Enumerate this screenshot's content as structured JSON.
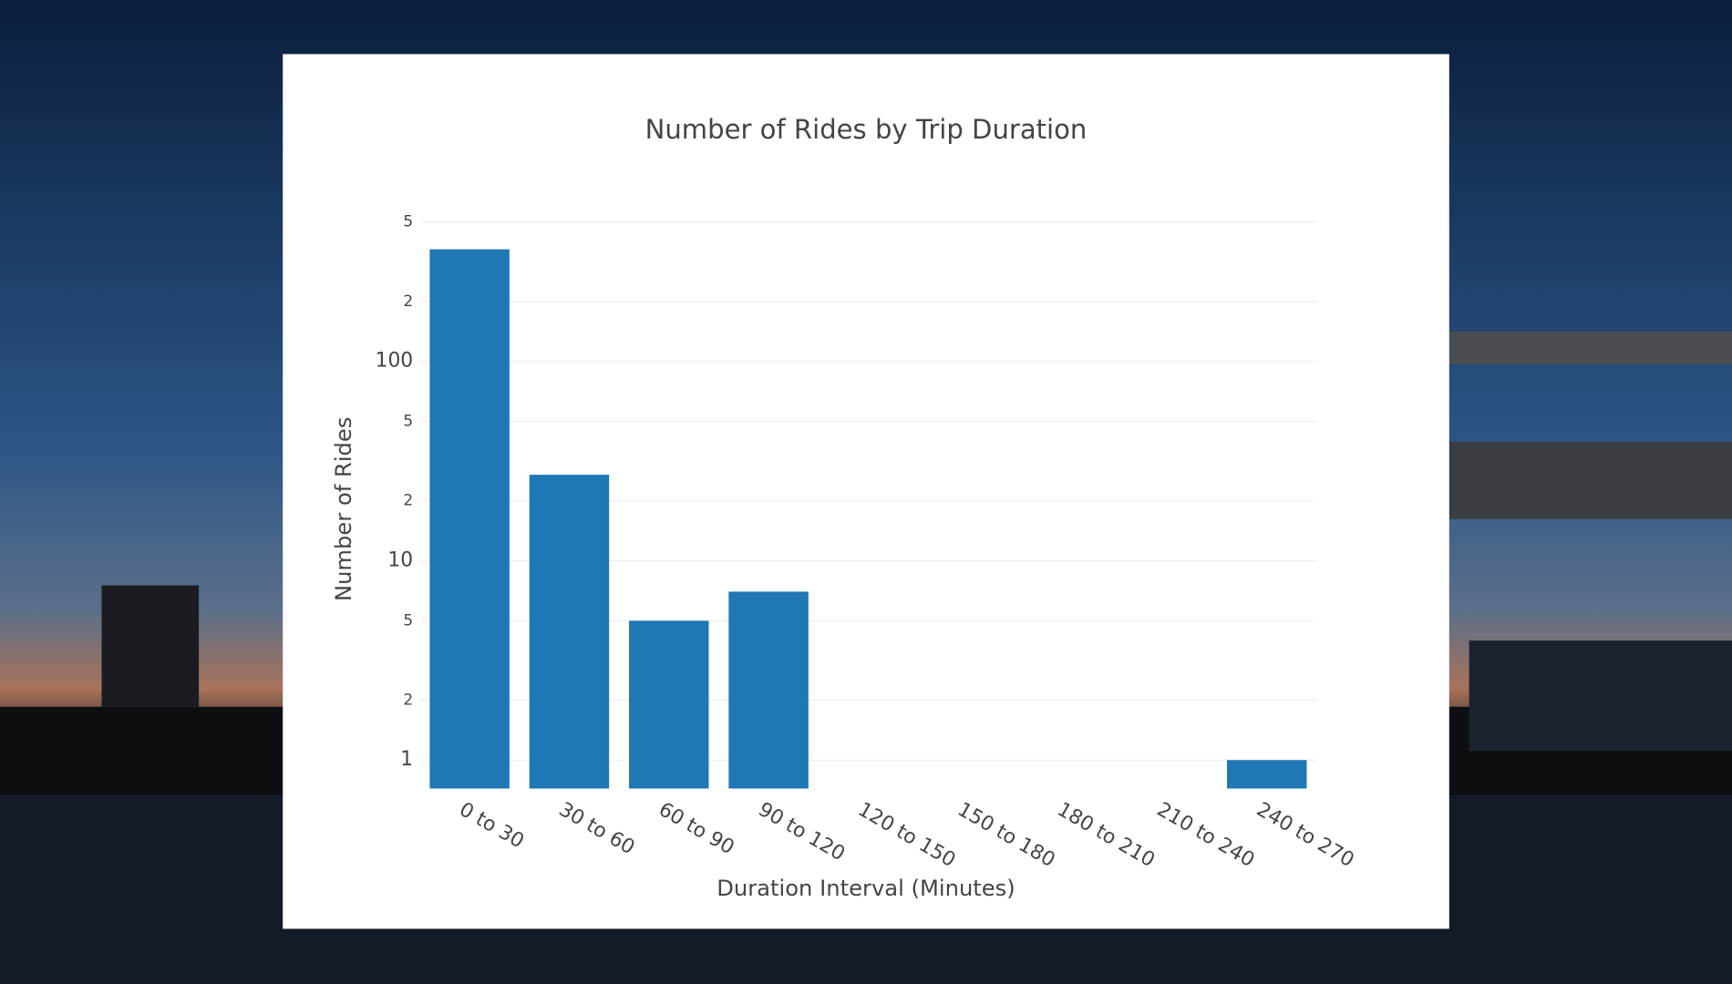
{
  "chart_data": {
    "type": "bar",
    "title": "Number of Rides by Trip Duration",
    "x_label": "Duration Interval (Minutes)",
    "y_label": "Number of Rides",
    "categories": [
      "0 to 30",
      "30 to 60",
      "60 to 90",
      "90 to 120",
      "120 to 150",
      "150 to 180",
      "180 to 210",
      "210 to 240",
      "240 to 270"
    ],
    "values": [
      365,
      27,
      5,
      7,
      null,
      null,
      null,
      null,
      1
    ],
    "color": "#1f77b4",
    "log_y": true,
    "grid": true,
    "ylim": [
      0.72,
      520
    ],
    "yticks": [
      1,
      2,
      5,
      10,
      {
        "value": 20,
        "label": "2"
      },
      {
        "value": 50,
        "label": "5"
      },
      100,
      {
        "value": 200,
        "label": "2"
      },
      {
        "value": 500,
        "label": "5"
      }
    ]
  }
}
